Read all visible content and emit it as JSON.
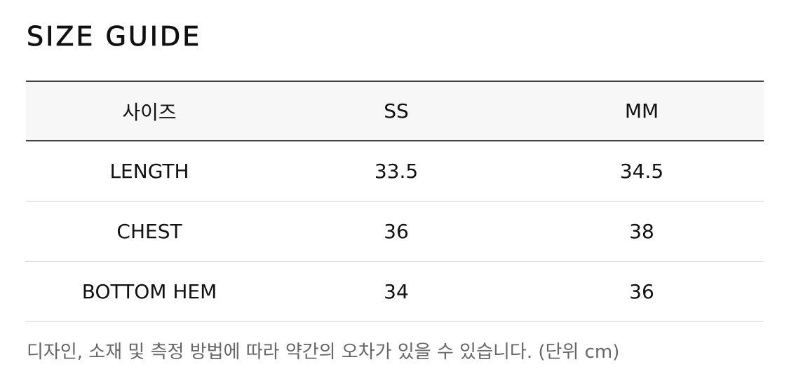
{
  "title": "SIZE GUIDE",
  "headers": [
    "사이즈",
    "SS",
    "MM"
  ],
  "rows": [
    [
      "LENGTH",
      "33.5",
      "34.5"
    ],
    [
      "CHEST",
      "36",
      "38"
    ],
    [
      "BOTTOM HEM",
      "34",
      "36"
    ]
  ],
  "note": "디자인, 소재 및 측정 방법에 따라 약간의 오차가 있을 수 있습니다. (단위 cm)"
}
